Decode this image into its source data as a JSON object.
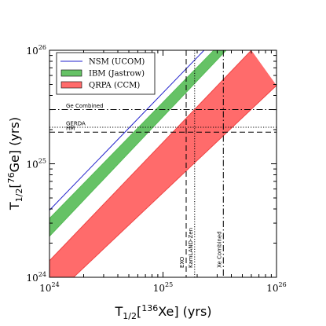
{
  "chart_data": {
    "type": "area",
    "xscale": "log",
    "yscale": "log",
    "xlim": [
      1e+24,
      1e+26
    ],
    "ylim": [
      1e+24,
      1e+26
    ],
    "xlabel": {
      "base": "T",
      "sub": "1/2",
      "bracket_open": "[",
      "sup": "136",
      "element": "Xe",
      "bracket_close": "]",
      "unit": " (yrs)"
    },
    "ylabel": {
      "base": "T",
      "sub": "1/2",
      "bracket_open": "[",
      "sup": "76",
      "element": "Ge",
      "bracket_close": "]",
      "unit": " (yrs)"
    },
    "x_ticks": [
      {
        "value": 1e+24,
        "base": "10",
        "exp": "24"
      },
      {
        "value": 1e+25,
        "base": "10",
        "exp": "25"
      },
      {
        "value": 1e+26,
        "base": "10",
        "exp": "26"
      }
    ],
    "y_ticks": [
      {
        "value": 1e+24,
        "base": "10",
        "exp": "24"
      },
      {
        "value": 1e+25,
        "base": "10",
        "exp": "25"
      },
      {
        "value": 1e+26,
        "base": "10",
        "exp": "26"
      }
    ],
    "legend_position": "top-left",
    "series": [
      {
        "name": "NSM (UCOM)",
        "kind": "line",
        "color": "#2222cc",
        "x": [
          1e+24,
          2.3e+25
        ],
        "y": [
          3.9e+24,
          1e+26
        ]
      },
      {
        "name": "IBM (Jastrow)",
        "kind": "band",
        "color": "#55bb55",
        "fill": "#66c266",
        "x_upper": [
          1e+24,
          2.8e+25
        ],
        "y_upper": [
          3.3e+24,
          1e+26
        ],
        "x_lower": [
          1e+24,
          3.6e+25
        ],
        "y_lower": [
          2.3e+24,
          1e+26
        ]
      },
      {
        "name": "QRPA (CCM)",
        "kind": "band",
        "color": "#ee4444",
        "fill": "#ff6b6b",
        "x_upper": [
          1e+24,
          6e+25
        ],
        "y_upper": [
          1.4e+24,
          1e+26
        ],
        "x_lower": [
          1e+24,
          1e+26
        ],
        "y_lower": [
          6.3e+23,
          4.9e+25
        ]
      }
    ],
    "reference_lines": [
      {
        "label": "Ge Combined",
        "orientation": "horizontal",
        "value": 3e+25,
        "style": "dashdot"
      },
      {
        "label": "GERDA",
        "orientation": "horizontal",
        "value": 2.1e+25,
        "style": "dotted"
      },
      {
        "label": "HM",
        "orientation": "horizontal",
        "value": 1.9e+25,
        "style": "dashed"
      },
      {
        "label": "EXO",
        "orientation": "vertical",
        "value": 1.6e+25,
        "style": "dashed"
      },
      {
        "label": "KamLAND-Zen",
        "orientation": "vertical",
        "value": 1.9e+25,
        "style": "dotted"
      },
      {
        "label": "Xe Combined",
        "orientation": "vertical",
        "value": 3.4e+25,
        "style": "dashdot"
      }
    ]
  }
}
